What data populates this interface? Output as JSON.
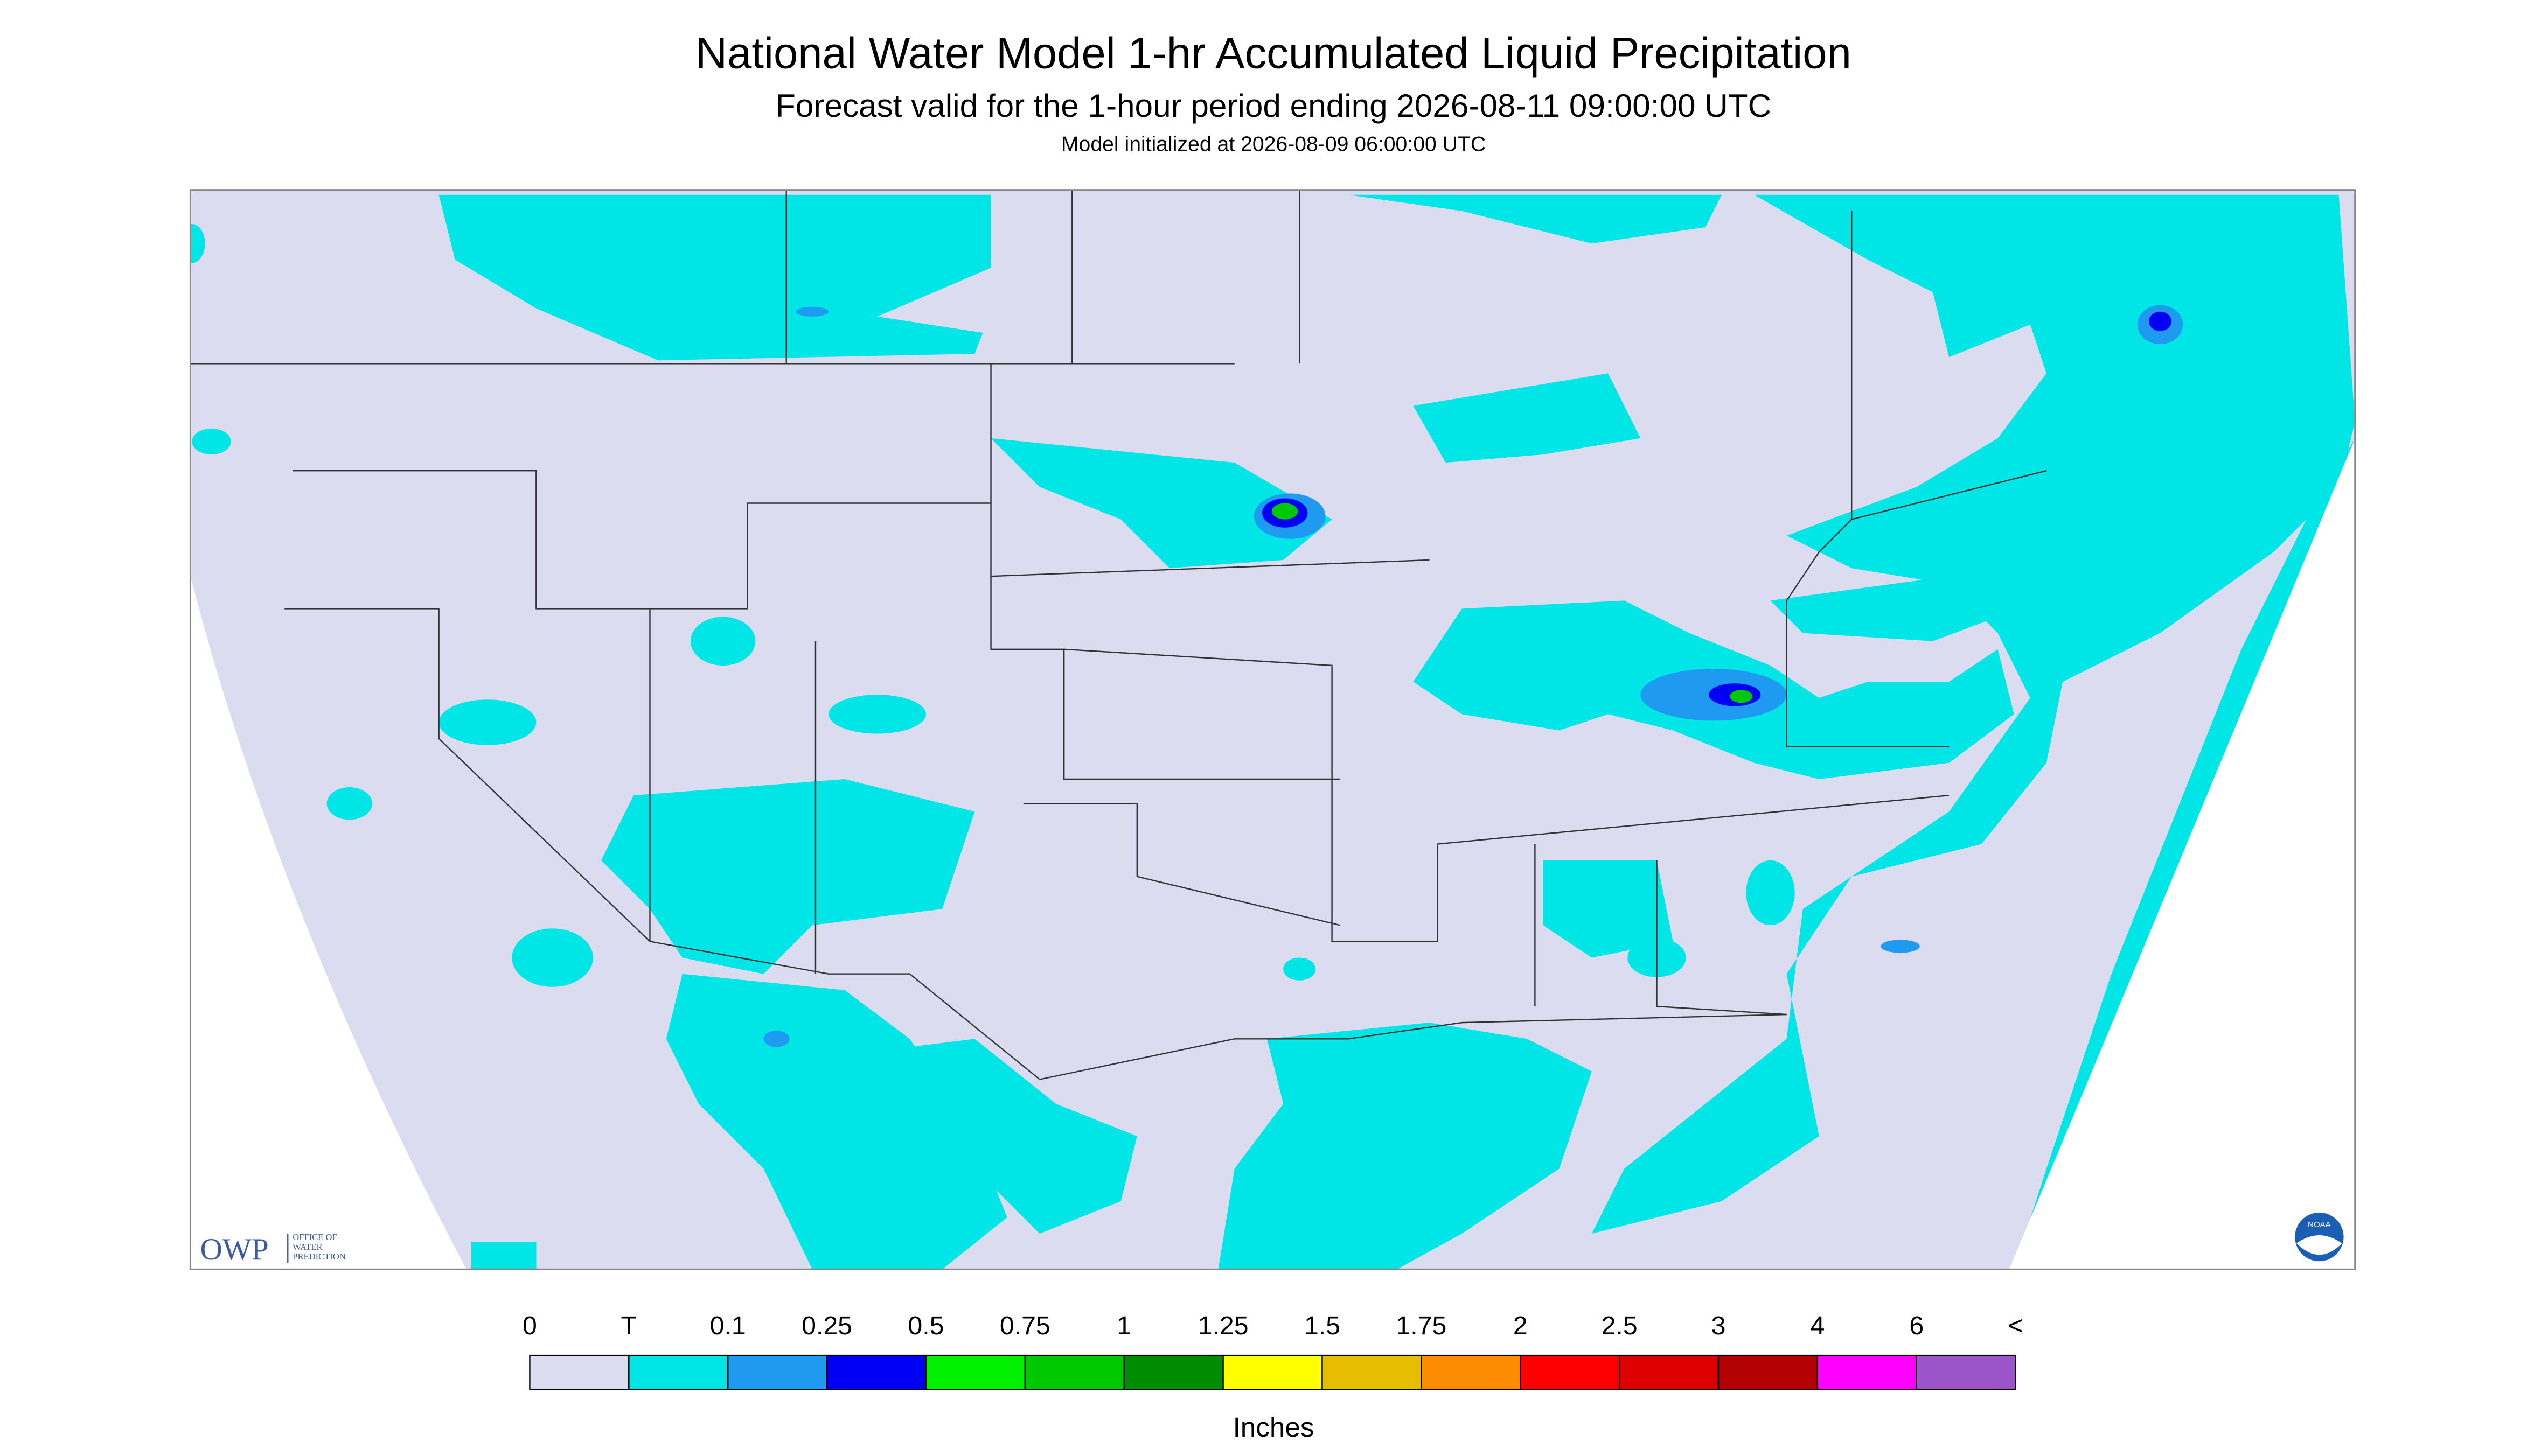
{
  "header": {
    "title": "National Water Model 1-hr Accumulated Liquid Precipitation",
    "subtitle": "Forecast valid for the 1-hour period ending 2026-08-11 09:00:00 UTC",
    "note": "Model initialized at 2026-08-09 06:00:00 UTC"
  },
  "logo": {
    "text": "OWP",
    "lines": [
      "OFFICE OF",
      "WATER",
      "PREDICTION"
    ],
    "badge": "NOAA"
  },
  "legend": {
    "labels": [
      "0",
      "T",
      "0.1",
      "0.25",
      "0.5",
      "0.75",
      "1",
      "1.25",
      "1.5",
      "1.75",
      "2",
      "2.5",
      "3",
      "4",
      "6",
      "<"
    ],
    "colors": [
      "#dcdcf0",
      "#00e6e6",
      "#1e9bf0",
      "#0000f5",
      "#00f000",
      "#00c800",
      "#008c00",
      "#ffff00",
      "#e6be00",
      "#ff8c00",
      "#ff0000",
      "#dc0000",
      "#b40000",
      "#ff00ff",
      "#9b55c8"
    ],
    "unit": "Inches"
  }
}
